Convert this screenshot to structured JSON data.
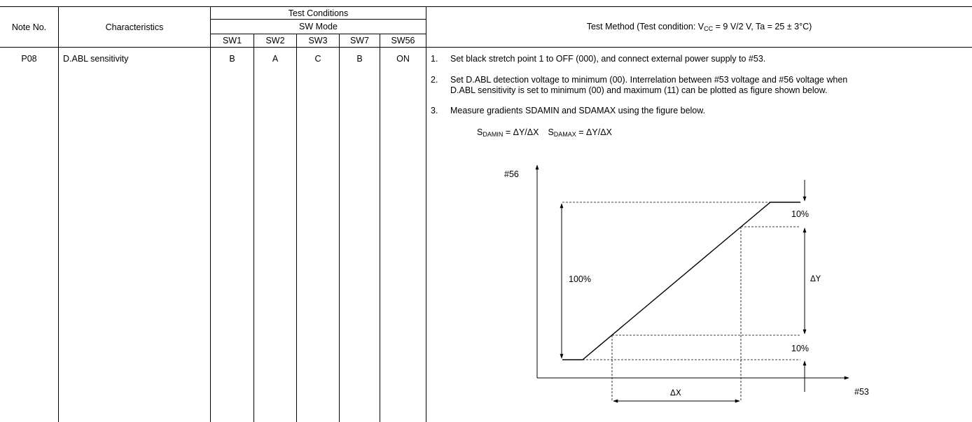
{
  "header": {
    "note_no": "Note No.",
    "characteristics": "Characteristics",
    "test_conditions": "Test Conditions",
    "sw_mode": "SW Mode",
    "switches": [
      "SW1",
      "SW2",
      "SW3",
      "SW7",
      "SW56"
    ],
    "test_method_prefix": "Test Method (Test condition: V",
    "test_method_sub": "CC",
    "test_method_suffix": " = 9 V/2 V, Ta = 25 ± 3°C)"
  },
  "row": {
    "note": "P08",
    "characteristic": "D.ABL sensitivity",
    "switch_values": [
      "B",
      "A",
      "C",
      "B",
      "ON"
    ]
  },
  "method": {
    "steps": [
      {
        "num": "1.",
        "lines": [
          "Set black stretch point 1 to OFF (000), and connect external power supply to #53."
        ]
      },
      {
        "num": "2.",
        "lines": [
          "Set D.ABL detection voltage to minimum (00). Interrelation between #53 voltage and #56 voltage when",
          "D.ABL sensitivity is set to minimum (00) and maximum (11) can be plotted as figure shown below."
        ]
      },
      {
        "num": "3.",
        "lines": [
          "Measure gradients SDAMIN and SDAMAX using the figure below."
        ]
      }
    ],
    "formula": {
      "s": "S",
      "damin_sub": "DAMIN",
      "eq1": " = ΔY/ΔX",
      "damax_sub": "DAMAX",
      "eq2": " = ΔY/ΔX"
    }
  },
  "figure": {
    "y_label": "#56",
    "x_label": "#53",
    "label_100": "100%",
    "label_10_top": "10%",
    "label_10_bottom": "10%",
    "label_dy": "ΔY",
    "label_dx": "ΔX"
  }
}
